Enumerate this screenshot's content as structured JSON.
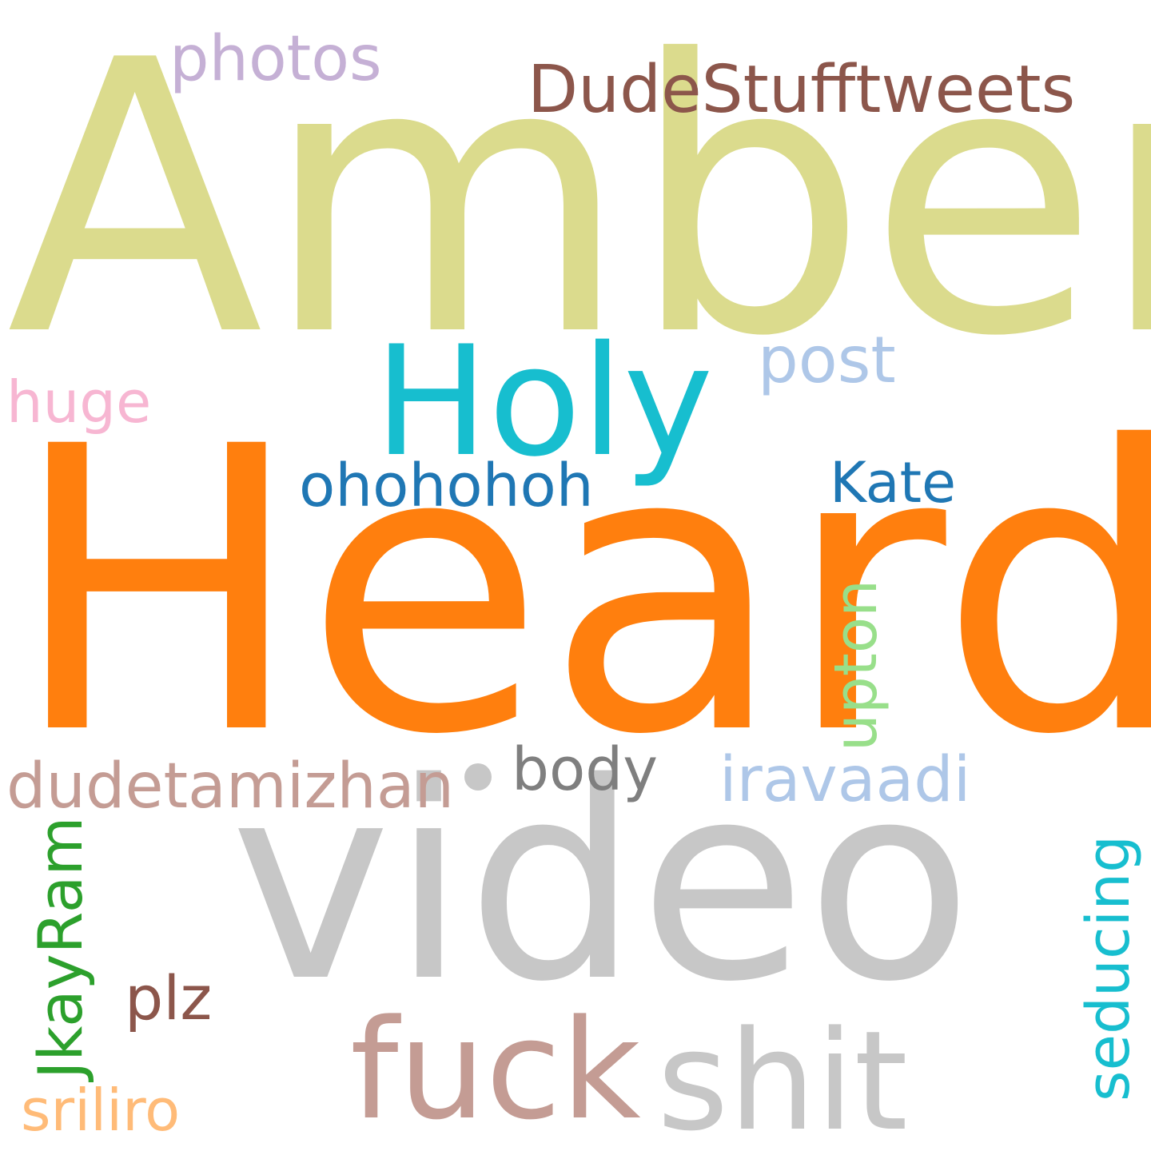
{
  "words": [
    {
      "id": "amber",
      "text": "Amber",
      "color": "#dbdb8d",
      "rotate": 0
    },
    {
      "id": "heard",
      "text": "Heard",
      "color": "#ff7f0e",
      "rotate": 0
    },
    {
      "id": "video",
      "text": "video",
      "color": "#c7c7c7",
      "rotate": 0
    },
    {
      "id": "holy",
      "text": "Holy",
      "color": "#17becf",
      "rotate": 0
    },
    {
      "id": "fuck",
      "text": "fuck",
      "color": "#c49c94",
      "rotate": 0
    },
    {
      "id": "shit",
      "text": "shit",
      "color": "#c7c7c7",
      "rotate": 0
    },
    {
      "id": "dudestufftweets",
      "text": "DudeStufftweets",
      "color": "#8c564b",
      "rotate": 0
    },
    {
      "id": "photos",
      "text": "photos",
      "color": "#c5b0d5",
      "rotate": 0
    },
    {
      "id": "post",
      "text": "post",
      "color": "#aec7e8",
      "rotate": 0
    },
    {
      "id": "huge",
      "text": "huge",
      "color": "#f7b6d2",
      "rotate": 0
    },
    {
      "id": "ohohohoh",
      "text": "ohohohoh",
      "color": "#1f77b4",
      "rotate": 0
    },
    {
      "id": "kate",
      "text": "Kate",
      "color": "#1f77b4",
      "rotate": 0
    },
    {
      "id": "upton",
      "text": "upton",
      "color": "#98df8a",
      "rotate": -90
    },
    {
      "id": "dudetamizhan",
      "text": "dudetamizhan",
      "color": "#c49c94",
      "rotate": 0
    },
    {
      "id": "body",
      "text": "body",
      "color": "#7f7f7f",
      "rotate": 0
    },
    {
      "id": "iravaadi",
      "text": "iravaadi",
      "color": "#aec7e8",
      "rotate": 0
    },
    {
      "id": "seducing",
      "text": "seducing",
      "color": "#17becf",
      "rotate": -90
    },
    {
      "id": "jkayram",
      "text": "JkayRam",
      "color": "#2ca02c",
      "rotate": -90
    },
    {
      "id": "plz",
      "text": "plz",
      "color": "#8c564b",
      "rotate": 0
    },
    {
      "id": "sriliro",
      "text": "sriliro",
      "color": "#ffbb78",
      "rotate": 0
    }
  ]
}
